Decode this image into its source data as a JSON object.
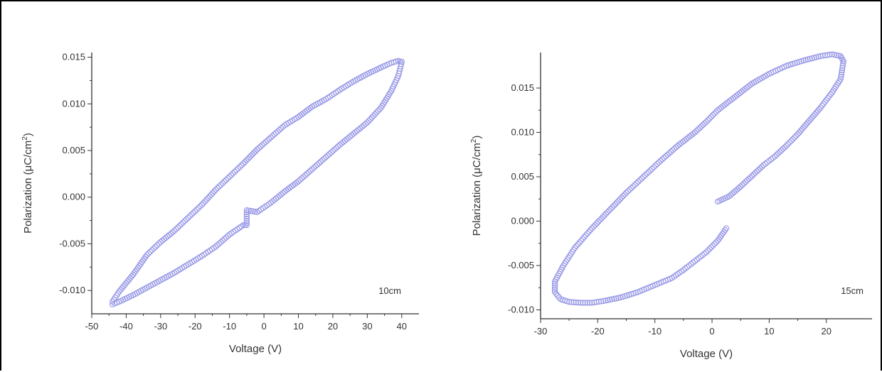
{
  "chart_data": [
    {
      "type": "scatter",
      "xlabel": "Voltage (V)",
      "ylabel_main": "Polarization (",
      "ylabel_mu": "μ",
      "ylabel_rest": "C/cm",
      "ylabel_sup": "2",
      "ylabel_end": ")",
      "annotation": "10cm",
      "xlim": [
        -50,
        45
      ],
      "ylim": [
        -0.0125,
        0.0155
      ],
      "xticks": [
        -50,
        -40,
        -30,
        -20,
        -10,
        0,
        10,
        20,
        30,
        40
      ],
      "xtick_labels": [
        "-50",
        "-40",
        "-30",
        "-20",
        "-10",
        "0",
        "10",
        "20",
        "30",
        "40"
      ],
      "yticks": [
        -0.01,
        -0.005,
        0.0,
        0.005,
        0.01,
        0.015
      ],
      "ytick_labels": [
        "-0.010",
        "-0.005",
        "0.000",
        "0.005",
        "0.010",
        "0.015"
      ],
      "marker_color": "#9a9ae8",
      "branches": [
        {
          "x": [
            -44,
            -42,
            -38,
            -34,
            -30,
            -26,
            -22,
            -18,
            -14,
            -10,
            -6,
            -2,
            2,
            6,
            10,
            14,
            18,
            22,
            26,
            30,
            34,
            37,
            39,
            40
          ],
          "y": [
            -0.0112,
            -0.0101,
            -0.0083,
            -0.0062,
            -0.0048,
            -0.0036,
            -0.0022,
            -0.0008,
            0.0008,
            0.0022,
            0.0036,
            0.0051,
            0.0064,
            0.0077,
            0.0086,
            0.0097,
            0.0105,
            0.0115,
            0.0124,
            0.0132,
            0.0139,
            0.0144,
            0.0146,
            0.0145
          ]
        },
        {
          "x": [
            40,
            39,
            37,
            34,
            30,
            26,
            22,
            18,
            14,
            10,
            6,
            2,
            -2,
            -5,
            -5,
            -6,
            -10,
            -14,
            -18,
            -22,
            -26,
            -30,
            -34,
            -38,
            -42,
            -44
          ],
          "y": [
            0.0145,
            0.013,
            0.0114,
            0.0096,
            0.008,
            0.0068,
            0.0056,
            0.0043,
            0.003,
            0.0017,
            0.0006,
            -0.0006,
            -0.0016,
            -0.0014,
            -0.003,
            -0.003,
            -0.004,
            -0.0053,
            -0.0063,
            -0.0072,
            -0.0081,
            -0.0089,
            -0.0097,
            -0.0105,
            -0.0112,
            -0.0115
          ]
        }
      ]
    },
    {
      "type": "scatter",
      "xlabel": "Voltage (V)",
      "ylabel_main": "Polarization (",
      "ylabel_mu": "μ",
      "ylabel_rest": "C/cm",
      "ylabel_sup": "2",
      "ylabel_end": ")",
      "annotation": "15cm",
      "xlim": [
        -30,
        28
      ],
      "ylim": [
        -0.011,
        0.019
      ],
      "xticks": [
        -30,
        -20,
        -10,
        0,
        10,
        20
      ],
      "xtick_labels": [
        "-30",
        "-20",
        "-10",
        "0",
        "10",
        "20"
      ],
      "yticks": [
        -0.01,
        -0.005,
        0.0,
        0.005,
        0.01,
        0.015
      ],
      "ytick_labels": [
        "-0.010",
        "-0.005",
        "0.000",
        "0.005",
        "0.010",
        "0.015"
      ],
      "marker_color": "#9a9ae8",
      "branches": [
        {
          "x": [
            2.5,
            1,
            -1,
            -3,
            -5,
            -7,
            -10,
            -13,
            -16,
            -19,
            -21,
            -23,
            -25,
            -26.5,
            -27.5,
            -27.5,
            -26,
            -24,
            -21,
            -18,
            -15,
            -12,
            -9,
            -6,
            -3,
            -1,
            1,
            4,
            7,
            10,
            13,
            16,
            19,
            21,
            22.5,
            23
          ],
          "y": [
            -0.0008,
            -0.0022,
            -0.0035,
            -0.0045,
            -0.0055,
            -0.0064,
            -0.0072,
            -0.008,
            -0.0086,
            -0.009,
            -0.0092,
            -0.0092,
            -0.0091,
            -0.0088,
            -0.008,
            -0.0068,
            -0.005,
            -0.003,
            -0.0008,
            0.0012,
            0.0032,
            0.005,
            0.0068,
            0.0085,
            0.01,
            0.0112,
            0.0125,
            0.014,
            0.0155,
            0.0166,
            0.0175,
            0.0181,
            0.0186,
            0.0188,
            0.0186,
            0.018
          ]
        },
        {
          "x": [
            23,
            22.5,
            21,
            19,
            17,
            15,
            13,
            11,
            9,
            7,
            5,
            3,
            1
          ],
          "y": [
            0.018,
            0.016,
            0.0145,
            0.0128,
            0.0113,
            0.0098,
            0.0085,
            0.0073,
            0.0063,
            0.0051,
            0.0039,
            0.0028,
            0.0022
          ]
        }
      ]
    }
  ]
}
